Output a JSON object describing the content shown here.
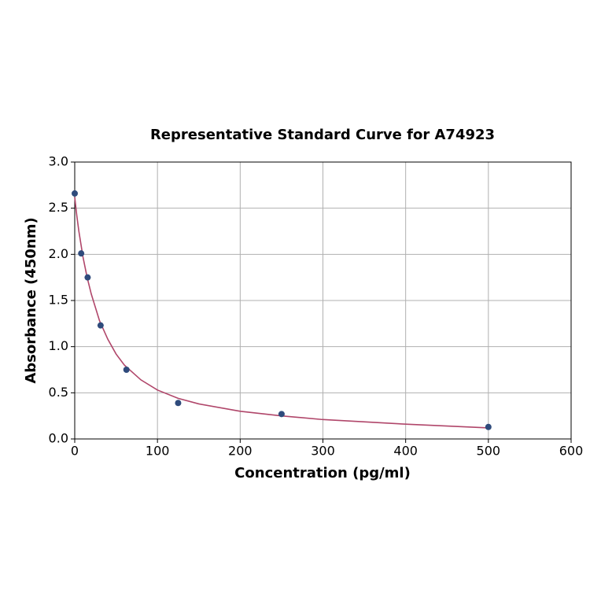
{
  "chart_data": {
    "type": "scatter",
    "title": "Representative Standard Curve for A74923",
    "x_label": "Concentration (pg/ml)",
    "y_label": "Absorbance (450nm)",
    "points": {
      "color": "#2f4b7c",
      "x": [
        0,
        7.8,
        15.6,
        31.25,
        62.5,
        125,
        250,
        500
      ],
      "y": [
        2.66,
        2.01,
        1.75,
        1.23,
        0.75,
        0.39,
        0.27,
        0.13
      ]
    },
    "curve": {
      "color": "#b0466a",
      "x": [
        0,
        2.5,
        5,
        10,
        15,
        20,
        30,
        40,
        50,
        60,
        80,
        100,
        125,
        150,
        200,
        250,
        300,
        400,
        500
      ],
      "y": [
        2.62,
        2.42,
        2.25,
        1.97,
        1.75,
        1.57,
        1.28,
        1.08,
        0.92,
        0.8,
        0.64,
        0.53,
        0.44,
        0.38,
        0.3,
        0.25,
        0.21,
        0.16,
        0.12
      ]
    },
    "xlim": [
      0,
      600
    ],
    "xticks": [
      0,
      100,
      200,
      300,
      400,
      500,
      600
    ],
    "ylim": [
      0,
      3
    ],
    "yticks": [
      {
        "value": 0,
        "label": "0.0"
      },
      {
        "value": 0.5,
        "label": "0.5"
      },
      {
        "value": 1,
        "label": "1.0"
      },
      {
        "value": 1.5,
        "label": "1.5"
      },
      {
        "value": 2,
        "label": "2.0"
      },
      {
        "value": 2.5,
        "label": "2.5"
      },
      {
        "value": 3,
        "label": "3.0"
      }
    ],
    "grid": true
  }
}
